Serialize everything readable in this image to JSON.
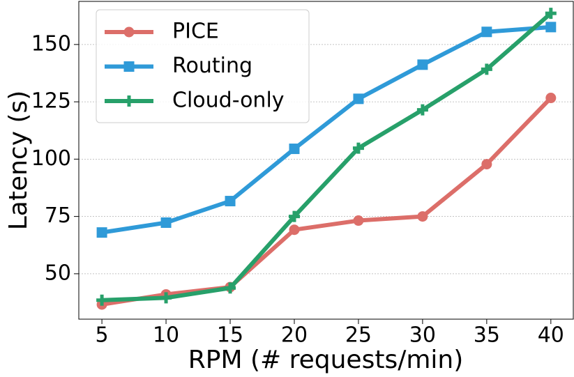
{
  "chart_data": {
    "type": "line",
    "x_label": "RPM (# requests/min)",
    "y_label": "Latency (s)",
    "x": [
      5,
      10,
      15,
      20,
      25,
      30,
      35,
      40
    ],
    "series": [
      {
        "name": "PICE",
        "color": "#dc6e69",
        "marker": "circle",
        "values": [
          36.6,
          41,
          44.2,
          69.2,
          73.2,
          75,
          97.8,
          126.7
        ]
      },
      {
        "name": "Routing",
        "color": "#2f9ad8",
        "marker": "square",
        "values": [
          68,
          72.3,
          81.7,
          104.5,
          126.3,
          141.2,
          155.5,
          157.6
        ]
      },
      {
        "name": "Cloud-only",
        "color": "#27a06a",
        "marker": "plus",
        "values": [
          38.5,
          39.5,
          43.8,
          75,
          104.8,
          121.5,
          139.2,
          163.6
        ]
      }
    ],
    "xlim": [
      3.2,
      41.75
    ],
    "ylim": [
      30.2,
      168.8
    ],
    "xticks": [
      5,
      10,
      15,
      20,
      25,
      30,
      35,
      40
    ],
    "yticks": [
      50,
      75,
      100,
      125,
      150
    ],
    "grid": true,
    "legend": "upper left"
  }
}
